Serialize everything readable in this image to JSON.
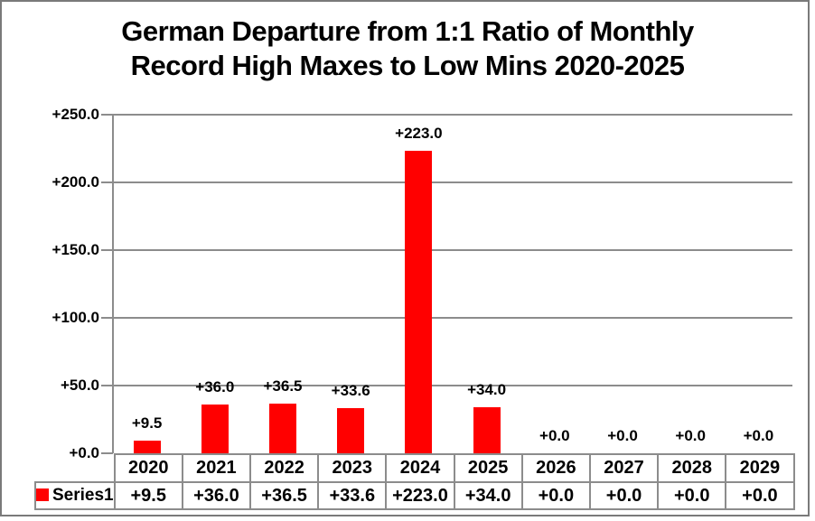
{
  "title": {
    "line1": "German Departure from 1:1 Ratio of Monthly",
    "line2": "Record High Maxes to Low Mins 2020-2025"
  },
  "chart_data": {
    "type": "bar",
    "title": "German Departure from 1:1 Ratio of Monthly Record High Maxes to Low Mins 2020-2025",
    "categories": [
      "2020",
      "2021",
      "2022",
      "2023",
      "2024",
      "2025",
      "2026",
      "2027",
      "2028",
      "2029"
    ],
    "series": [
      {
        "name": "Series1",
        "values": [
          9.5,
          36.0,
          36.5,
          33.6,
          223.0,
          34.0,
          0.0,
          0.0,
          0.0,
          0.0
        ],
        "data_labels": [
          "+9.5",
          "+36.0",
          "+36.5",
          "+33.6",
          "+223.0",
          "+34.0",
          "+0.0",
          "+0.0",
          "+0.0",
          "+0.0"
        ],
        "table_values": [
          "+9.5",
          "+36.0",
          "+36.5",
          "+33.6",
          "+223.0",
          "+34.0",
          "+0.0",
          "+0.0",
          "+0.0",
          "+0.0"
        ]
      }
    ],
    "y_axis": {
      "min": 0,
      "max": 250,
      "step": 50,
      "tick_labels": [
        "+0.0",
        "+50.0",
        "+100.0",
        "+150.0",
        "+200.0",
        "+250.0"
      ]
    },
    "grid": true,
    "legend": {
      "position": "bottom-table",
      "label": "Series1"
    },
    "colors": {
      "bar": "#ff0000",
      "gridline": "#8c8c8c",
      "frame_border": "#7a7a7a",
      "text": "#000000"
    }
  }
}
